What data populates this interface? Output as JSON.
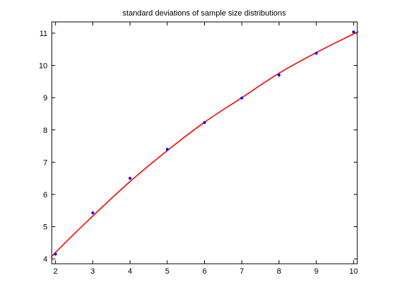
{
  "chart_data": {
    "type": "scatter",
    "title": "standard deviations of sample size distributions",
    "xlabel": "",
    "ylabel": "",
    "xlim": [
      1.9,
      10.1
    ],
    "ylim": [
      3.85,
      11.35
    ],
    "x_ticks": [
      2,
      3,
      4,
      5,
      6,
      7,
      8,
      9,
      10
    ],
    "y_ticks": [
      4,
      5,
      6,
      7,
      8,
      9,
      10,
      11
    ],
    "x_tick_labels": [
      "2",
      "3",
      "4",
      "5",
      "6",
      "7",
      "8",
      "9",
      "10"
    ],
    "y_tick_labels": [
      "4",
      "5",
      "6",
      "7",
      "8",
      "9",
      "10",
      "11"
    ],
    "grid": false,
    "series": [
      {
        "kind": "points",
        "x": [
          2,
          3,
          4,
          5,
          6,
          7,
          8,
          9,
          10
        ],
        "y": [
          4.15,
          5.43,
          6.5,
          7.4,
          8.23,
          8.99,
          9.7,
          10.38,
          11.04
        ],
        "color": "#0000ff"
      },
      {
        "kind": "fit-line",
        "x": [
          1.9,
          2,
          3,
          4,
          5,
          6,
          7,
          8,
          9,
          10,
          10.1
        ],
        "y": [
          4.04,
          4.2,
          5.33,
          6.4,
          7.36,
          8.24,
          9.0,
          9.76,
          10.4,
          10.98,
          11.04
        ],
        "color": "#ff0000"
      }
    ]
  }
}
